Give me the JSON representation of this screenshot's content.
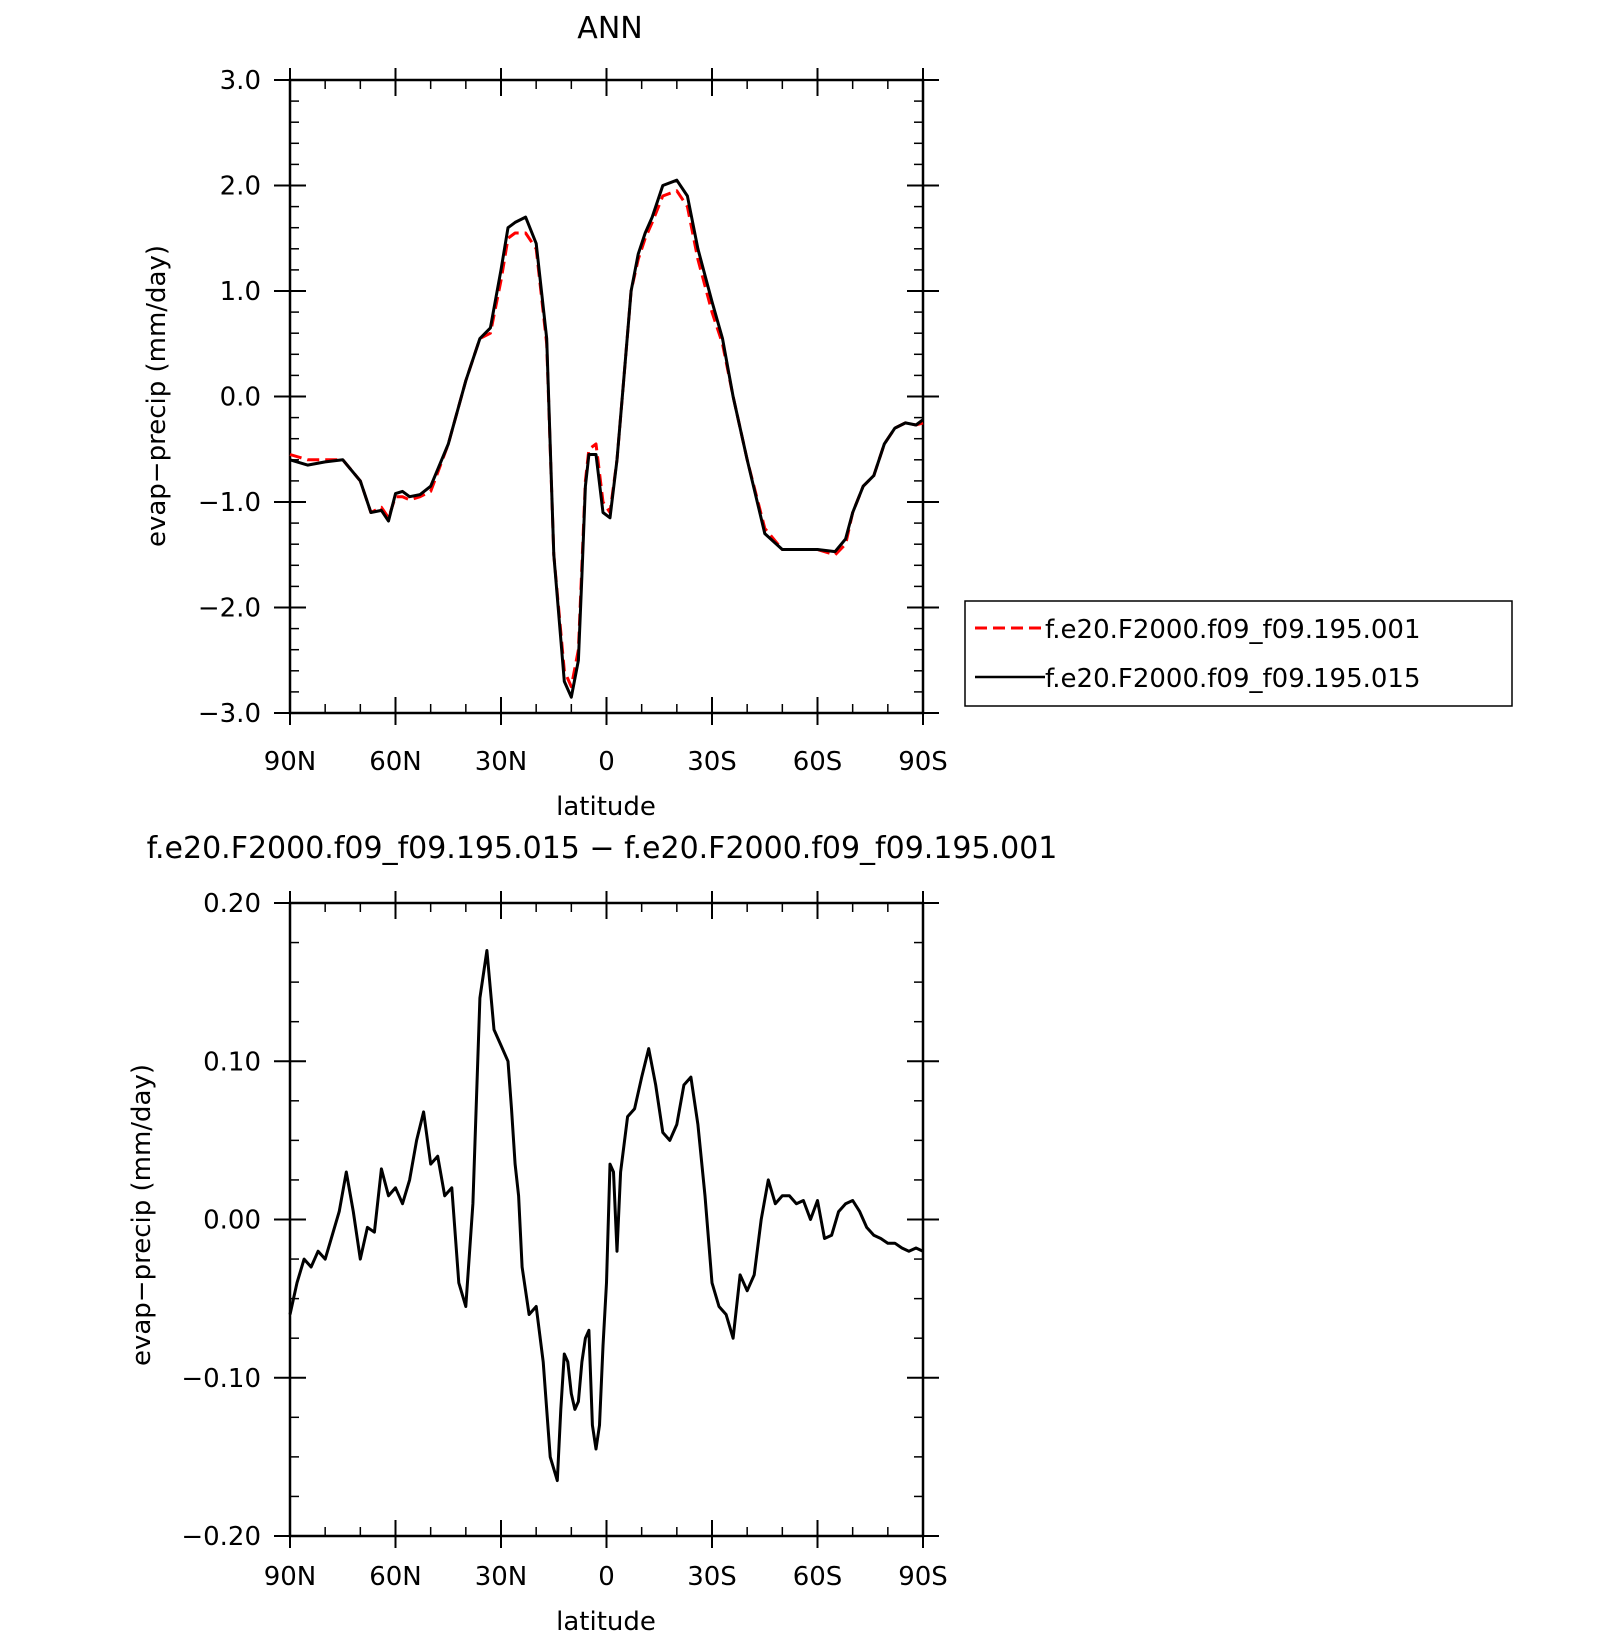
{
  "chart_data": [
    {
      "type": "line",
      "title": "ANN",
      "xlabel": "latitude",
      "ylabel": "evap−precip (mm/day)",
      "xlim": [
        90,
        -90
      ],
      "ylim": [
        -3.0,
        3.0
      ],
      "x_ticks": [
        90,
        60,
        30,
        0,
        -30,
        -60,
        -90
      ],
      "x_tick_labels": [
        "90N",
        "60N",
        "30N",
        "0",
        "30S",
        "60S",
        "90S"
      ],
      "y_ticks": [
        -3.0,
        -2.0,
        -1.0,
        0.0,
        1.0,
        2.0,
        3.0
      ],
      "y_tick_labels": [
        "−3.0",
        "−2.0",
        "−1.0",
        "0.0",
        "1.0",
        "2.0",
        "3.0"
      ],
      "legend_position": "right",
      "series": [
        {
          "name": "f.e20.F2000.f09_f09.195.001",
          "color": "#ff0000",
          "dash": "dashed",
          "x": [
            90,
            85,
            80,
            75,
            70,
            67,
            64,
            62,
            60,
            58,
            56,
            53,
            50,
            45,
            40,
            36,
            33,
            30,
            28,
            26,
            23,
            20,
            17,
            15,
            12,
            10,
            8,
            7,
            6,
            5,
            3,
            1,
            -1,
            -3,
            -5,
            -7,
            -9,
            -11,
            -13,
            -16,
            -20,
            -23,
            -26,
            -30,
            -33,
            -36,
            -40,
            -45,
            -50,
            -55,
            -60,
            -65,
            -68,
            -70,
            -73,
            -76,
            -79,
            -82,
            -85,
            -88,
            -90
          ],
          "y": [
            -0.55,
            -0.6,
            -0.6,
            -0.6,
            -0.8,
            -1.1,
            -1.05,
            -1.15,
            -0.95,
            -0.95,
            -0.98,
            -0.95,
            -0.9,
            -0.45,
            0.15,
            0.55,
            0.6,
            1.1,
            1.5,
            1.55,
            1.55,
            1.4,
            0.5,
            -1.5,
            -2.6,
            -2.75,
            -2.4,
            -1.6,
            -0.8,
            -0.5,
            -0.45,
            -1.0,
            -1.1,
            -0.6,
            0.2,
            1.0,
            1.3,
            1.5,
            1.65,
            1.9,
            1.95,
            1.8,
            1.3,
            0.8,
            0.5,
            0.0,
            -0.6,
            -1.25,
            -1.45,
            -1.45,
            -1.45,
            -1.5,
            -1.4,
            -1.1,
            -0.85,
            -0.75,
            -0.45,
            -0.3,
            -0.25,
            -0.27,
            -0.25
          ]
        },
        {
          "name": "f.e20.F2000.f09_f09.195.015",
          "color": "#000000",
          "dash": "solid",
          "x": [
            90,
            85,
            80,
            75,
            70,
            67,
            64,
            62,
            60,
            58,
            56,
            53,
            50,
            45,
            40,
            36,
            33,
            30,
            28,
            26,
            23,
            20,
            17,
            15,
            12,
            10,
            8,
            7,
            6,
            5,
            3,
            1,
            -1,
            -3,
            -5,
            -7,
            -9,
            -11,
            -13,
            -16,
            -20,
            -23,
            -26,
            -30,
            -33,
            -36,
            -40,
            -45,
            -50,
            -55,
            -60,
            -65,
            -68,
            -70,
            -73,
            -76,
            -79,
            -82,
            -85,
            -88,
            -90
          ],
          "y": [
            -0.6,
            -0.65,
            -0.62,
            -0.6,
            -0.8,
            -1.1,
            -1.08,
            -1.18,
            -0.92,
            -0.9,
            -0.95,
            -0.93,
            -0.85,
            -0.45,
            0.15,
            0.55,
            0.65,
            1.2,
            1.6,
            1.65,
            1.7,
            1.45,
            0.55,
            -1.5,
            -2.7,
            -2.85,
            -2.5,
            -1.7,
            -0.85,
            -0.55,
            -0.55,
            -1.1,
            -1.15,
            -0.6,
            0.2,
            1.0,
            1.35,
            1.55,
            1.7,
            2.0,
            2.05,
            1.9,
            1.4,
            0.9,
            0.55,
            0.0,
            -0.6,
            -1.3,
            -1.45,
            -1.45,
            -1.45,
            -1.47,
            -1.35,
            -1.1,
            -0.85,
            -0.75,
            -0.45,
            -0.3,
            -0.25,
            -0.27,
            -0.22
          ]
        }
      ]
    },
    {
      "type": "line",
      "title": "f.e20.F2000.f09_f09.195.015 − f.e20.F2000.f09_f09.195.001",
      "xlabel": "latitude",
      "ylabel": "evap−precip (mm/day)",
      "xlim": [
        90,
        -90
      ],
      "ylim": [
        -0.2,
        0.2
      ],
      "x_ticks": [
        90,
        60,
        30,
        0,
        -30,
        -60,
        -90
      ],
      "x_tick_labels": [
        "90N",
        "60N",
        "30N",
        "0",
        "30S",
        "60S",
        "90S"
      ],
      "y_ticks": [
        -0.2,
        -0.1,
        0.0,
        0.1,
        0.2
      ],
      "y_tick_labels": [
        "−0.20",
        "−0.10",
        "0.00",
        "0.10",
        "0.20"
      ],
      "series": [
        {
          "color": "#000000",
          "dash": "solid",
          "x": [
            90,
            88,
            86,
            84,
            82,
            80,
            78,
            76,
            74,
            72,
            70,
            68,
            66,
            64,
            62,
            60,
            58,
            56,
            54,
            52,
            50,
            48,
            46,
            44,
            42,
            40,
            38,
            36,
            34,
            32,
            30,
            28,
            27,
            26,
            25,
            24,
            22,
            20,
            18,
            16,
            14,
            13,
            12,
            11,
            10,
            9,
            8,
            7,
            6,
            5,
            4,
            3,
            2,
            1,
            0,
            -1,
            -2,
            -3,
            -4,
            -6,
            -8,
            -10,
            -12,
            -14,
            -16,
            -18,
            -20,
            -22,
            -24,
            -26,
            -28,
            -30,
            -32,
            -34,
            -36,
            -38,
            -40,
            -42,
            -44,
            -46,
            -48,
            -50,
            -52,
            -54,
            -56,
            -58,
            -60,
            -62,
            -64,
            -66,
            -68,
            -70,
            -72,
            -74,
            -76,
            -78,
            -80,
            -82,
            -84,
            -86,
            -88,
            -90
          ],
          "y": [
            -0.06,
            -0.04,
            -0.025,
            -0.03,
            -0.02,
            -0.025,
            -0.01,
            0.005,
            0.03,
            0.005,
            -0.025,
            -0.005,
            -0.008,
            0.032,
            0.015,
            0.02,
            0.01,
            0.025,
            0.05,
            0.068,
            0.035,
            0.04,
            0.015,
            0.02,
            -0.04,
            -0.055,
            0.01,
            0.14,
            0.17,
            0.12,
            0.11,
            0.1,
            0.07,
            0.035,
            0.015,
            -0.03,
            -0.06,
            -0.055,
            -0.09,
            -0.15,
            -0.165,
            -0.12,
            -0.085,
            -0.09,
            -0.11,
            -0.12,
            -0.115,
            -0.09,
            -0.075,
            -0.07,
            -0.13,
            -0.145,
            -0.13,
            -0.08,
            -0.04,
            0.035,
            0.03,
            -0.02,
            0.03,
            0.065,
            0.07,
            0.09,
            0.108,
            0.085,
            0.055,
            0.05,
            0.06,
            0.085,
            0.09,
            0.06,
            0.015,
            -0.04,
            -0.055,
            -0.06,
            -0.075,
            -0.035,
            -0.045,
            -0.035,
            0.0,
            0.025,
            0.01,
            0.015,
            0.015,
            0.01,
            0.012,
            0.0,
            0.012,
            -0.012,
            -0.01,
            0.005,
            0.01,
            0.012,
            0.005,
            -0.005,
            -0.01,
            -0.012,
            -0.015,
            -0.015,
            -0.018,
            -0.02,
            -0.018,
            -0.02
          ]
        }
      ]
    }
  ]
}
